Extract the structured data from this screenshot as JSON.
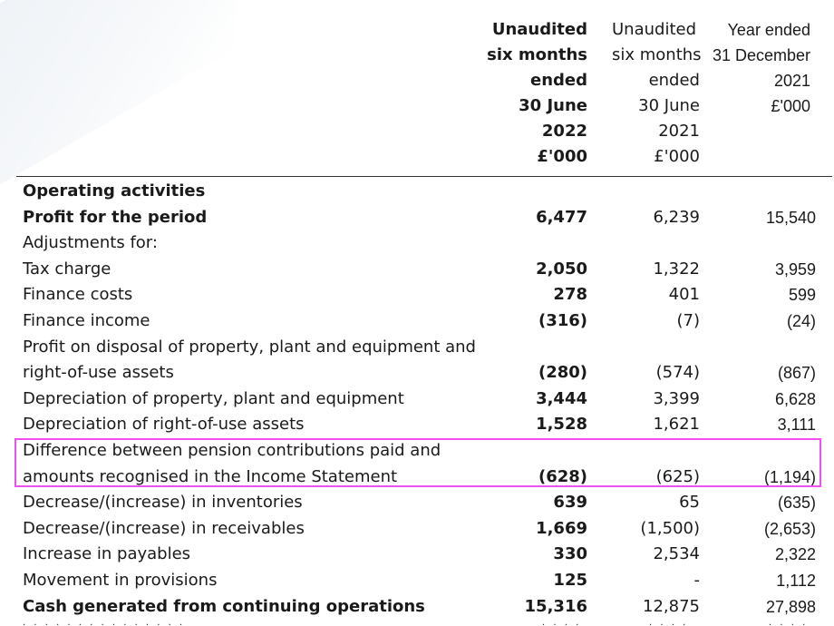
{
  "colors": {
    "highlight": "#f04ff0",
    "text": "#1a1a1a"
  },
  "header": {
    "col1": [
      "Unaudited",
      "six months",
      "ended",
      "30 June",
      "2022",
      "£'000"
    ],
    "col2": [
      "Unaudited",
      "six months",
      "ended",
      "30 June",
      "2021",
      "£'000"
    ],
    "col3": [
      "",
      "",
      "Year ended",
      "31 December",
      "2021",
      "£'000"
    ]
  },
  "rows": [
    {
      "label": "Operating activities",
      "bold": true,
      "v1": "",
      "v2": "",
      "v3": ""
    },
    {
      "label": "Profit for the period",
      "bold": true,
      "v1": "6,477",
      "v2": "6,239",
      "v3": "15,540"
    },
    {
      "label": "Adjustments for:",
      "bold": false,
      "v1": "",
      "v2": "",
      "v3": ""
    },
    {
      "label": "Tax charge",
      "bold": false,
      "v1": "2,050",
      "v2": "1,322",
      "v3": "3,959"
    },
    {
      "label": "Finance costs",
      "bold": false,
      "v1": "278",
      "v2": "401",
      "v3": "599"
    },
    {
      "label": "Finance income",
      "bold": false,
      "v1": "(316)",
      "v2": "(7)",
      "v3": "(24)"
    },
    {
      "label": "Profit on disposal of property, plant and equipment and",
      "bold": false,
      "v1": "",
      "v2": "",
      "v3": ""
    },
    {
      "label": "right-of-use assets",
      "bold": false,
      "v1": "(280)",
      "v2": "(574)",
      "v3": "(867)"
    },
    {
      "label": "Depreciation of property, plant and equipment",
      "bold": false,
      "v1": "3,444",
      "v2": "3,399",
      "v3": "6,628"
    },
    {
      "label": "Depreciation of right-of-use assets",
      "bold": false,
      "v1": "1,528",
      "v2": "1,621",
      "v3": "3,111"
    },
    {
      "label": "Difference between pension contributions paid and",
      "bold": false,
      "v1": "",
      "v2": "",
      "v3": ""
    },
    {
      "label": "amounts recognised in the Income Statement",
      "bold": false,
      "v1": "(628)",
      "v2": "(625)",
      "v3": "(1,194)"
    },
    {
      "label": "Decrease/(increase) in inventories",
      "bold": false,
      "v1": "639",
      "v2": "65",
      "v3": "(635)"
    },
    {
      "label": "Decrease/(increase) in receivables",
      "bold": false,
      "v1": "1,669",
      "v2": "(1,500)",
      "v3": "(2,653)"
    },
    {
      "label": "Increase in payables",
      "bold": false,
      "v1": "330",
      "v2": "2,534",
      "v3": "2,322"
    },
    {
      "label": "Movement in provisions",
      "bold": false,
      "v1": "125",
      "v2": "-",
      "v3": "1,112"
    },
    {
      "label": "Cash generated from continuing operations",
      "bold": true,
      "v1": "15,316",
      "v2": "12,875",
      "v3": "27,898"
    }
  ]
}
